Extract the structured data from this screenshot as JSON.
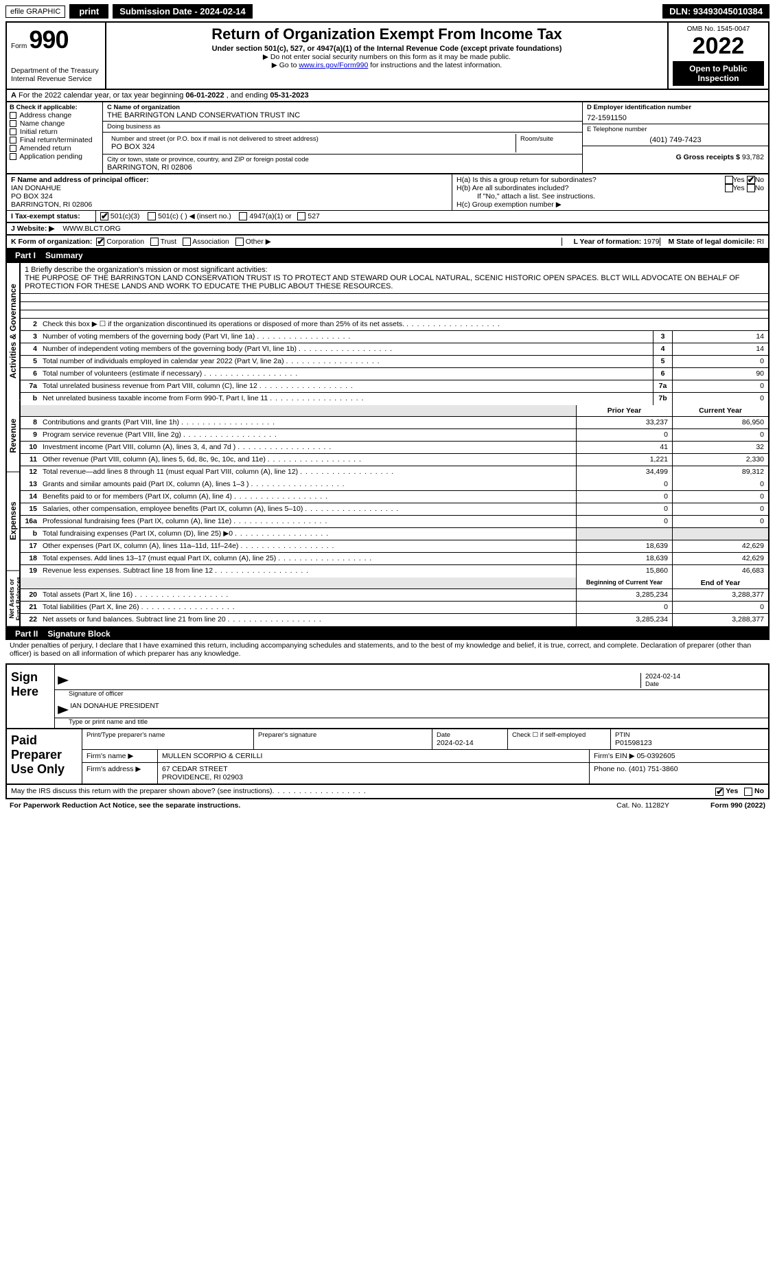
{
  "topbar": {
    "efile": "efile GRAPHIC",
    "print": "print",
    "subdate": "Submission Date - 2024-02-14",
    "dln": "DLN: 93493045010384"
  },
  "header": {
    "form_word": "Form",
    "form_num": "990",
    "title": "Return of Organization Exempt From Income Tax",
    "sub1": "Under section 501(c), 527, or 4947(a)(1) of the Internal Revenue Code (except private foundations)",
    "sub2": "▶ Do not enter social security numbers on this form as it may be made public.",
    "sub3_pre": "▶ Go to ",
    "sub3_link": "www.irs.gov/Form990",
    "sub3_post": " for instructions and the latest information.",
    "dept": "Department of the Treasury",
    "irs": "Internal Revenue Service",
    "omb": "OMB No. 1545-0047",
    "year": "2022",
    "open": "Open to Public Inspection"
  },
  "lineA": {
    "text_pre": "For the 2022 calendar year, or tax year beginning ",
    "begin": "06-01-2022",
    "mid": "   , and ending ",
    "end": "05-31-2023"
  },
  "boxB": {
    "hdr": "B Check if applicable:",
    "items": [
      "Address change",
      "Name change",
      "Initial return",
      "Final return/terminated",
      "Amended return",
      "Application pending"
    ]
  },
  "boxC": {
    "name_hdr": "C Name of organization",
    "name": "THE BARRINGTON LAND CONSERVATION TRUST INC",
    "dba_hdr": "Doing business as",
    "dba": "",
    "addr_hdr": "Number and street (or P.O. box if mail is not delivered to street address)",
    "room_hdr": "Room/suite",
    "addr": "PO BOX 324",
    "city_hdr": "City or town, state or province, country, and ZIP or foreign postal code",
    "city": "BARRINGTON, RI  02806"
  },
  "boxD": {
    "hdr": "D Employer identification number",
    "val": "72-1591150"
  },
  "boxE": {
    "hdr": "E Telephone number",
    "val": "(401) 749-7423"
  },
  "boxG": {
    "hdr": "G Gross receipts $",
    "val": "93,782"
  },
  "boxF": {
    "hdr": "F Name and address of principal officer:",
    "name": "IAN DONAHUE",
    "addr1": "PO BOX 324",
    "addr2": "BARRINGTON, RI  02806"
  },
  "boxH": {
    "a": "H(a)  Is this a group return for subordinates?",
    "b": "H(b)  Are all subordinates included?",
    "b_note": "If \"No,\" attach a list. See instructions.",
    "c": "H(c)  Group exemption number ▶",
    "yes": "Yes",
    "no": "No"
  },
  "boxI": {
    "hdr": "I   Tax-exempt status:",
    "opts": [
      "501(c)(3)",
      "501(c) (    ) ◀ (insert no.)",
      "4947(a)(1) or",
      "527"
    ]
  },
  "boxJ": {
    "hdr": "J   Website: ▶",
    "val": "WWW.BLCT.ORG"
  },
  "boxK": {
    "hdr": "K Form of organization:",
    "opts": [
      "Corporation",
      "Trust",
      "Association",
      "Other ▶"
    ]
  },
  "boxL": {
    "hdr": "L Year of formation:",
    "val": "1979"
  },
  "boxM": {
    "hdr": "M State of legal domicile:",
    "val": "RI"
  },
  "part1": {
    "num": "Part I",
    "title": "Summary"
  },
  "mission": {
    "hdr": "1  Briefly describe the organization's mission or most significant activities:",
    "text": "THE PURPOSE OF THE BARRINGTON LAND CONSERVATION TRUST IS TO PROTECT AND STEWARD OUR LOCAL NATURAL, SCENIC HISTORIC OPEN SPACES. BLCT WILL ADVOCATE ON BEHALF OF PROTECTION FOR THESE LANDS AND WORK TO EDUCATE THE PUBLIC ABOUT THESE RESOURCES."
  },
  "gov_rows": [
    {
      "n": "2",
      "d": "Check this box ▶ ☐  if the organization discontinued its operations or disposed of more than 25% of its net assets.",
      "box": "",
      "v": ""
    },
    {
      "n": "3",
      "d": "Number of voting members of the governing body (Part VI, line 1a)",
      "box": "3",
      "v": "14"
    },
    {
      "n": "4",
      "d": "Number of independent voting members of the governing body (Part VI, line 1b)",
      "box": "4",
      "v": "14"
    },
    {
      "n": "5",
      "d": "Total number of individuals employed in calendar year 2022 (Part V, line 2a)",
      "box": "5",
      "v": "0"
    },
    {
      "n": "6",
      "d": "Total number of volunteers (estimate if necessary)",
      "box": "6",
      "v": "90"
    },
    {
      "n": "7a",
      "d": "Total unrelated business revenue from Part VIII, column (C), line 12",
      "box": "7a",
      "v": "0"
    },
    {
      "n": "b",
      "d": "Net unrelated business taxable income from Form 990-T, Part I, line 11",
      "box": "7b",
      "v": "0"
    }
  ],
  "col_hdrs": {
    "py": "Prior Year",
    "cy": "Current Year"
  },
  "rev_rows": [
    {
      "n": "8",
      "d": "Contributions and grants (Part VIII, line 1h)",
      "py": "33,237",
      "cy": "86,950"
    },
    {
      "n": "9",
      "d": "Program service revenue (Part VIII, line 2g)",
      "py": "0",
      "cy": "0"
    },
    {
      "n": "10",
      "d": "Investment income (Part VIII, column (A), lines 3, 4, and 7d )",
      "py": "41",
      "cy": "32"
    },
    {
      "n": "11",
      "d": "Other revenue (Part VIII, column (A), lines 5, 6d, 8c, 9c, 10c, and 11e)",
      "py": "1,221",
      "cy": "2,330"
    },
    {
      "n": "12",
      "d": "Total revenue—add lines 8 through 11 (must equal Part VIII, column (A), line 12)",
      "py": "34,499",
      "cy": "89,312"
    }
  ],
  "exp_rows": [
    {
      "n": "13",
      "d": "Grants and similar amounts paid (Part IX, column (A), lines 1–3 )",
      "py": "0",
      "cy": "0"
    },
    {
      "n": "14",
      "d": "Benefits paid to or for members (Part IX, column (A), line 4)",
      "py": "0",
      "cy": "0"
    },
    {
      "n": "15",
      "d": "Salaries, other compensation, employee benefits (Part IX, column (A), lines 5–10)",
      "py": "0",
      "cy": "0"
    },
    {
      "n": "16a",
      "d": "Professional fundraising fees (Part IX, column (A), line 11e)",
      "py": "0",
      "cy": "0"
    },
    {
      "n": "b",
      "d": "Total fundraising expenses (Part IX, column (D), line 25) ▶0",
      "py": "",
      "cy": "",
      "shade": true
    },
    {
      "n": "17",
      "d": "Other expenses (Part IX, column (A), lines 11a–11d, 11f–24e)",
      "py": "18,639",
      "cy": "42,629"
    },
    {
      "n": "18",
      "d": "Total expenses. Add lines 13–17 (must equal Part IX, column (A), line 25)",
      "py": "18,639",
      "cy": "42,629"
    },
    {
      "n": "19",
      "d": "Revenue less expenses. Subtract line 18 from line 12",
      "py": "15,860",
      "cy": "46,683"
    }
  ],
  "na_hdrs": {
    "py": "Beginning of Current Year",
    "cy": "End of Year"
  },
  "na_rows": [
    {
      "n": "20",
      "d": "Total assets (Part X, line 16)",
      "py": "3,285,234",
      "cy": "3,288,377"
    },
    {
      "n": "21",
      "d": "Total liabilities (Part X, line 26)",
      "py": "0",
      "cy": "0"
    },
    {
      "n": "22",
      "d": "Net assets or fund balances. Subtract line 21 from line 20",
      "py": "3,285,234",
      "cy": "3,288,377"
    }
  ],
  "vlabels": {
    "gov": "Activities & Governance",
    "rev": "Revenue",
    "exp": "Expenses",
    "na": "Net Assets or Fund Balances"
  },
  "part2": {
    "num": "Part II",
    "title": "Signature Block"
  },
  "sig": {
    "penalties": "Under penalties of perjury, I declare that I have examined this return, including accompanying schedules and statements, and to the best of my knowledge and belief, it is true, correct, and complete. Declaration of preparer (other than officer) is based on all information of which preparer has any knowledge.",
    "sign_here": "Sign Here",
    "sig_officer": "Signature of officer",
    "date_lbl": "Date",
    "date_val": "2024-02-14",
    "name": "IAN DONAHUE PRESIDENT",
    "type_name": "Type or print name and title"
  },
  "paid": {
    "label": "Paid Preparer Use Only",
    "print_name_hdr": "Print/Type preparer's name",
    "prep_sig_hdr": "Preparer's signature",
    "date_hdr": "Date",
    "date_val": "2024-02-14",
    "check_hdr": "Check ☐ if self-employed",
    "ptin_hdr": "PTIN",
    "ptin_val": "P01598123",
    "firm_name_hdr": "Firm's name    ▶",
    "firm_name": "MULLEN SCORPIO & CERILLI",
    "firm_ein_hdr": "Firm's EIN ▶",
    "firm_ein": "05-0392605",
    "firm_addr_hdr": "Firm's address ▶",
    "firm_addr1": "67 CEDAR STREET",
    "firm_addr2": "PROVIDENCE, RI  02903",
    "phone_hdr": "Phone no.",
    "phone": "(401) 751-3860"
  },
  "may_irs": {
    "text": "May the IRS discuss this return with the preparer shown above? (see instructions)",
    "yes": "Yes",
    "no": "No"
  },
  "footer": {
    "pra": "For Paperwork Reduction Act Notice, see the separate instructions.",
    "cat": "Cat. No. 11282Y",
    "form": "Form 990 (2022)"
  },
  "colors": {
    "black": "#000000",
    "white": "#ffffff",
    "shade": "#e6e6e6",
    "link": "#0000cc"
  }
}
